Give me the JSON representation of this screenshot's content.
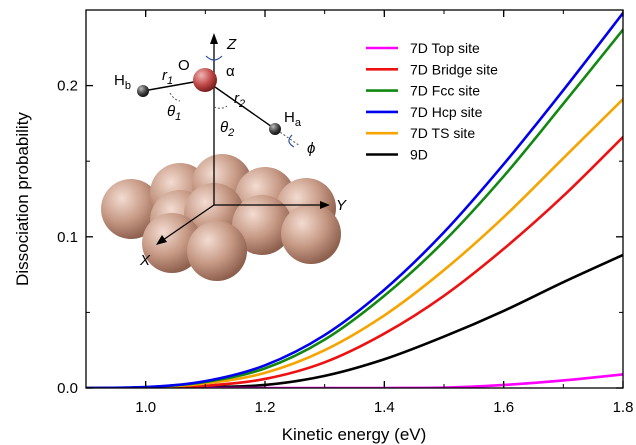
{
  "chart_data": {
    "type": "line",
    "xlabel": "Kinetic energy (eV)",
    "ylabel": "Dissociation probability",
    "xlim": [
      0.9,
      1.8
    ],
    "ylim": [
      0,
      0.25
    ],
    "x_ticks": [
      "1.0",
      "1.2",
      "1.4",
      "1.6",
      "1.8"
    ],
    "y_ticks": [
      "0.0",
      "0.1",
      "0.2"
    ],
    "grid": false,
    "legend_position": "top-right",
    "x": [
      0.9,
      1.0,
      1.1,
      1.2,
      1.3,
      1.4,
      1.5,
      1.6,
      1.7,
      1.8
    ],
    "series": [
      {
        "name": "7D Top site",
        "color": "#ff00ff",
        "values": [
          0,
          0,
          0,
          0,
          0,
          0,
          0.0002,
          0.002,
          0.005,
          0.009
        ]
      },
      {
        "name": "7D Bridge site",
        "color": "#ee1111",
        "values": [
          0,
          0,
          0.0015,
          0.006,
          0.017,
          0.036,
          0.061,
          0.092,
          0.127,
          0.166
        ]
      },
      {
        "name": "7D Fcc site",
        "color": "#118811",
        "values": [
          0,
          0.0005,
          0.004,
          0.013,
          0.032,
          0.061,
          0.097,
          0.14,
          0.188,
          0.237
        ]
      },
      {
        "name": "7D Hcp site",
        "color": "#0000ee",
        "values": [
          0,
          0.0006,
          0.0045,
          0.015,
          0.035,
          0.065,
          0.103,
          0.148,
          0.197,
          0.248
        ]
      },
      {
        "name": "7D TS site",
        "color": "#f5a400",
        "values": [
          0,
          0.0003,
          0.003,
          0.01,
          0.025,
          0.048,
          0.078,
          0.113,
          0.152,
          0.191
        ]
      },
      {
        "name": "9D",
        "color": "#000000",
        "values": [
          0,
          0,
          0.0005,
          0.002,
          0.008,
          0.019,
          0.034,
          0.051,
          0.07,
          0.088
        ]
      }
    ]
  },
  "inset": {
    "axis_z": "Z",
    "axis_y": "Y",
    "axis_x": "X",
    "atom_o": "O",
    "atom_hb": "H",
    "atom_hb_sub": "b",
    "atom_ha": "H",
    "atom_ha_sub": "a",
    "r1": "r",
    "r1_sub": "1",
    "r2": "r",
    "r2_sub": "2",
    "theta1": "θ",
    "theta1_sub": "1",
    "theta2": "θ",
    "theta2_sub": "2",
    "alpha": "α",
    "phi": "ϕ"
  }
}
